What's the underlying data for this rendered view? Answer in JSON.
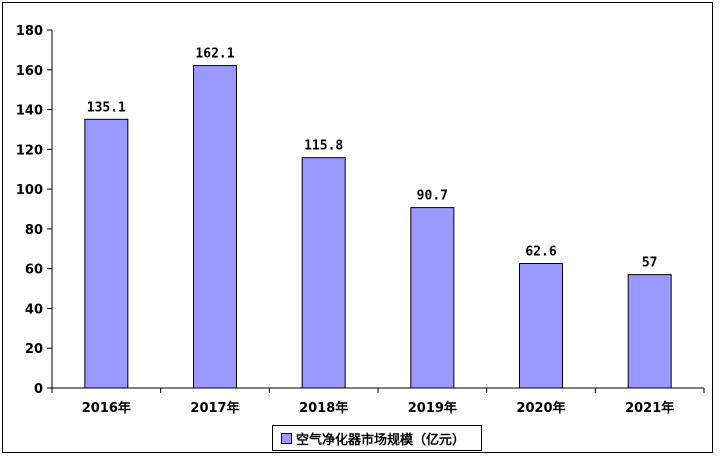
{
  "colors": {
    "bar": "#9999ff",
    "bar_stroke": "#000000"
  },
  "chart_data": {
    "type": "bar",
    "categories": [
      "2016年",
      "2017年",
      "2018年",
      "2019年",
      "2020年",
      "2021年"
    ],
    "series": [
      {
        "name": "空气净化器市场规模（亿元）",
        "values": [
          135.1,
          162.1,
          115.8,
          90.7,
          62.6,
          57
        ]
      }
    ],
    "data_labels": [
      "135.1",
      "162.1",
      "115.8",
      "90.7",
      "62.6",
      "57"
    ],
    "ylim": [
      0,
      180
    ],
    "yticks": [
      0,
      20,
      40,
      60,
      80,
      100,
      120,
      140,
      160,
      180
    ],
    "grid": false,
    "legend": "bottom",
    "title": "",
    "xlabel": "",
    "ylabel": ""
  }
}
